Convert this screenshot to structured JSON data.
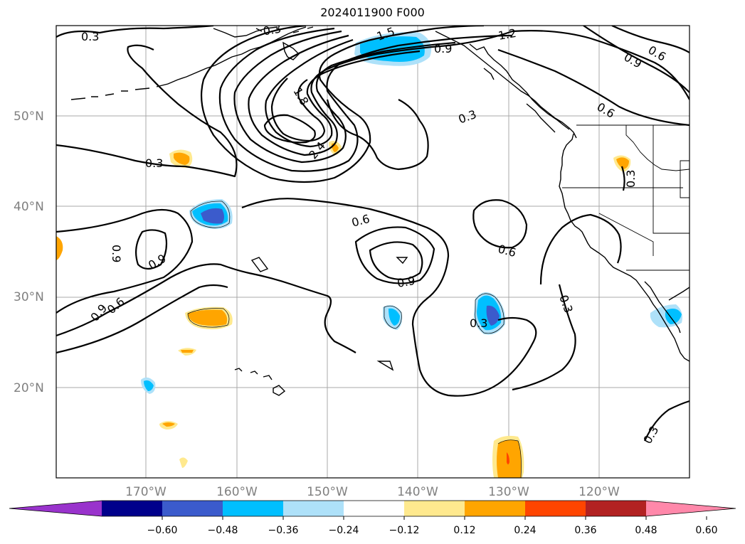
{
  "title": "2024011900 F000",
  "lat_labels": [
    "50°N",
    "40°N",
    "30°N",
    "20°N"
  ],
  "lon_labels": [
    "170°W",
    "160°W",
    "150°W",
    "140°W",
    "130°W",
    "120°W"
  ],
  "colorbar": {
    "colors": [
      "#9933cc",
      "#00008b",
      "#3b5bcc",
      "#00bfff",
      "#aee1f9",
      "#ffffff",
      "#ffe98e",
      "#ffa500",
      "#ff4500",
      "#b22222",
      "#ff88aa"
    ],
    "tick_labels": [
      "−0.60",
      "−0.48",
      "−0.36",
      "−0.24",
      "−0.12",
      "0.12",
      "0.24",
      "0.36",
      "0.48",
      "0.60"
    ]
  },
  "contour_labels": [
    "0.3",
    "0.3",
    "1.5",
    "1.2",
    "0.9",
    "0.6",
    "0.9",
    "1.8",
    "0.3",
    "2.4",
    "0.3",
    "0.6",
    "0.3",
    "0.6",
    "0.6",
    "0.9",
    "0.9",
    "0.9",
    "0.6",
    "0.3",
    "0.3",
    "0.3"
  ]
}
